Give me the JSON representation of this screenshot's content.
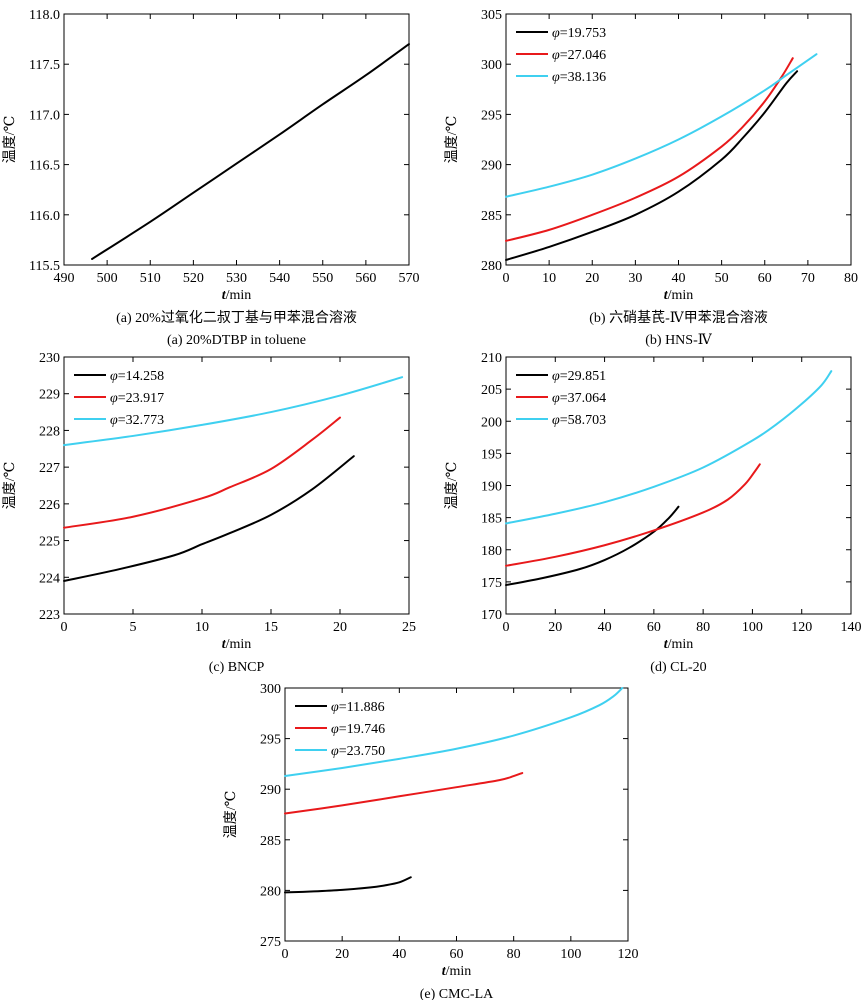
{
  "colors": {
    "black": "#000000",
    "red": "#e8191b",
    "cyan": "#3fd0f0"
  },
  "chart_data": [
    {
      "type": "line",
      "title": "",
      "caption_lines": [
        "(a) 20%过氧化二叔丁基与甲苯混合溶液",
        "(a) 20%DTBP in toluene"
      ],
      "xlabel": "t/min",
      "ylabel": "温度/℃",
      "xlim": [
        490,
        570
      ],
      "ylim": [
        115.5,
        118.0
      ],
      "x_ticks": [
        "490",
        "500",
        "510",
        "520",
        "530",
        "540",
        "550",
        "560",
        "570"
      ],
      "y_ticks": [
        "115.5",
        "116.0",
        "116.5",
        "117.0",
        "117.5",
        "118.0"
      ],
      "legend": "none",
      "series": [
        {
          "color": "#000000",
          "x": [
            496.5,
            510,
            520,
            530,
            540,
            550,
            560,
            570
          ],
          "y": [
            115.56,
            115.93,
            116.22,
            116.51,
            116.8,
            117.1,
            117.39,
            117.7
          ]
        }
      ]
    },
    {
      "type": "line",
      "title": "",
      "caption_lines": [
        "(b) 六硝基芪-Ⅳ甲苯混合溶液",
        "(b) HNS-Ⅳ"
      ],
      "xlabel": "t/min",
      "ylabel": "温度/℃",
      "xlim": [
        0,
        80
      ],
      "ylim": [
        280,
        305
      ],
      "x_ticks": [
        "0",
        "10",
        "20",
        "30",
        "40",
        "50",
        "60",
        "70",
        "80"
      ],
      "y_ticks": [
        "280",
        "285",
        "290",
        "295",
        "300",
        "305"
      ],
      "legend": "top-left",
      "series": [
        {
          "name": "φ=19.753",
          "color": "#000000",
          "x": [
            0,
            10,
            20,
            30,
            40,
            50,
            55,
            60,
            65,
            67.5
          ],
          "y": [
            280.5,
            281.8,
            283.3,
            285.0,
            287.3,
            290.5,
            292.7,
            295.2,
            298.1,
            299.3
          ]
        },
        {
          "name": "φ=27.046",
          "color": "#e8191b",
          "x": [
            0,
            10,
            20,
            30,
            40,
            50,
            55,
            60,
            64,
            66.5
          ],
          "y": [
            282.4,
            283.5,
            285.0,
            286.7,
            288.8,
            291.8,
            293.8,
            296.3,
            298.8,
            300.6
          ]
        },
        {
          "name": "φ=38.136",
          "color": "#3fd0f0",
          "x": [
            0,
            10,
            20,
            30,
            40,
            50,
            60,
            65,
            72
          ],
          "y": [
            286.8,
            287.8,
            289.0,
            290.6,
            292.5,
            294.8,
            297.4,
            298.9,
            301.0
          ]
        }
      ]
    },
    {
      "type": "line",
      "title": "",
      "caption_lines": [
        "(c) BNCP"
      ],
      "xlabel": "t/min",
      "ylabel": "温度/℃",
      "xlim": [
        0,
        25
      ],
      "ylim": [
        223,
        230
      ],
      "x_ticks": [
        "0",
        "5",
        "10",
        "15",
        "20",
        "25"
      ],
      "y_ticks": [
        "223",
        "224",
        "225",
        "226",
        "227",
        "228",
        "229",
        "230"
      ],
      "legend": "top-left",
      "series": [
        {
          "name": "φ=14.258",
          "color": "#000000",
          "x": [
            0,
            4,
            8,
            10,
            12,
            15,
            18,
            21
          ],
          "y": [
            223.9,
            224.22,
            224.6,
            224.9,
            225.2,
            225.7,
            226.4,
            227.3
          ]
        },
        {
          "name": "φ=23.917",
          "color": "#e8191b",
          "x": [
            0,
            5,
            10,
            12,
            15,
            18,
            20
          ],
          "y": [
            225.35,
            225.65,
            226.15,
            226.45,
            226.95,
            227.75,
            228.35
          ]
        },
        {
          "name": "φ=32.773",
          "color": "#3fd0f0",
          "x": [
            0,
            5,
            10,
            15,
            20,
            24.5
          ],
          "y": [
            227.6,
            227.85,
            228.15,
            228.5,
            228.95,
            229.45
          ]
        }
      ]
    },
    {
      "type": "line",
      "title": "",
      "caption_lines": [
        "(d) CL-20"
      ],
      "xlabel": "t/min",
      "ylabel": "温度/℃",
      "xlim": [
        0,
        140
      ],
      "ylim": [
        170,
        210
      ],
      "x_ticks": [
        "0",
        "20",
        "40",
        "60",
        "80",
        "100",
        "120",
        "140"
      ],
      "y_ticks": [
        "170",
        "175",
        "180",
        "185",
        "190",
        "195",
        "200",
        "205",
        "210"
      ],
      "legend": "top-left",
      "series": [
        {
          "name": "φ=29.851",
          "color": "#000000",
          "x": [
            0,
            15,
            30,
            40,
            50,
            60,
            66,
            70
          ],
          "y": [
            174.5,
            175.6,
            177.0,
            178.4,
            180.3,
            182.8,
            184.9,
            186.7
          ]
        },
        {
          "name": "φ=37.064",
          "color": "#e8191b",
          "x": [
            0,
            20,
            40,
            60,
            80,
            90,
            97,
            101,
            103
          ],
          "y": [
            177.5,
            178.9,
            180.7,
            183.0,
            185.8,
            187.8,
            190.2,
            192.2,
            193.3
          ]
        },
        {
          "name": "φ=58.703",
          "color": "#3fd0f0",
          "x": [
            0,
            20,
            40,
            60,
            80,
            100,
            110,
            120,
            128,
            132
          ],
          "y": [
            184.1,
            185.6,
            187.4,
            189.8,
            192.8,
            197.0,
            199.6,
            202.7,
            205.6,
            207.8
          ]
        }
      ]
    },
    {
      "type": "line",
      "title": "",
      "caption_lines": [
        "(e) CMC-LA"
      ],
      "xlabel": "t/min",
      "ylabel": "温度/℃",
      "xlim": [
        0,
        120
      ],
      "ylim": [
        275,
        300
      ],
      "x_ticks": [
        "0",
        "20",
        "40",
        "60",
        "80",
        "100",
        "120"
      ],
      "y_ticks": [
        "275",
        "280",
        "285",
        "290",
        "295",
        "300"
      ],
      "legend": "top-left",
      "series": [
        {
          "name": "φ=11.886",
          "color": "#000000",
          "x": [
            0,
            10,
            20,
            30,
            35,
            40,
            44
          ],
          "y": [
            279.8,
            279.9,
            280.05,
            280.3,
            280.5,
            280.8,
            281.3
          ]
        },
        {
          "name": "φ=19.746",
          "color": "#e8191b",
          "x": [
            0,
            20,
            40,
            60,
            75,
            80,
            83
          ],
          "y": [
            287.6,
            288.4,
            289.3,
            290.2,
            290.9,
            291.3,
            291.6
          ]
        },
        {
          "name": "φ=23.750",
          "color": "#3fd0f0",
          "x": [
            0,
            20,
            40,
            60,
            80,
            100,
            110,
            115,
            118
          ],
          "y": [
            291.3,
            292.1,
            293.0,
            294.0,
            295.3,
            297.1,
            298.3,
            299.2,
            300.0
          ]
        }
      ]
    }
  ]
}
